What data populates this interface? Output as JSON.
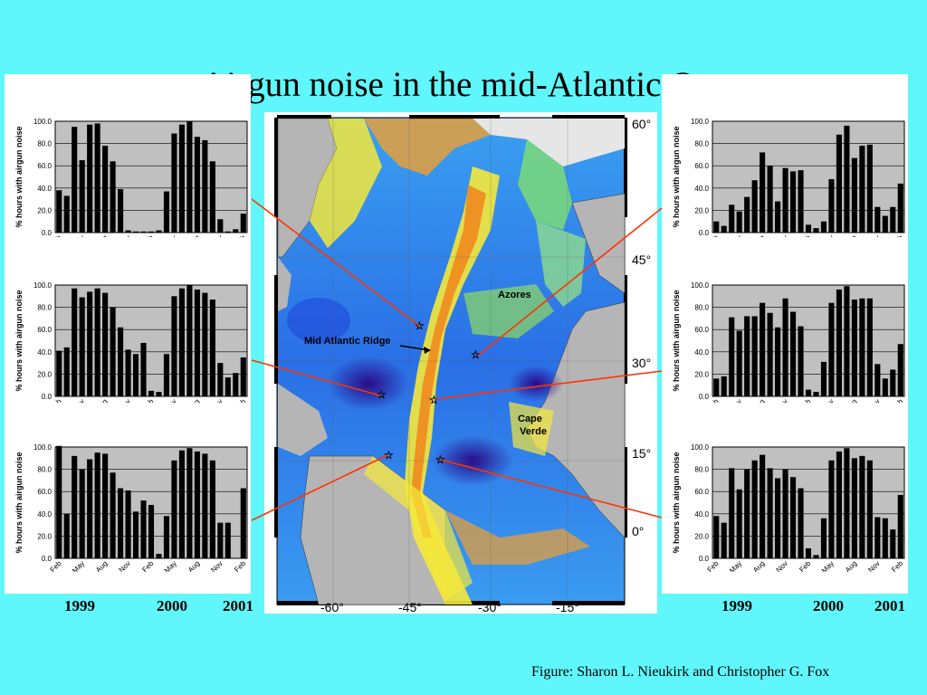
{
  "title": "Airgun noise in the mid-Atlantic Ocean",
  "credit": "Figure: Sharon L. Nieukirk and Christopher G. Fox",
  "year_labels": [
    "1999",
    "2000",
    "2001"
  ],
  "colors": {
    "background": "#5ff7fb",
    "plot_bg": "#c0c0c0",
    "bar": "#000000",
    "connector": "#ff3300",
    "deep": "#1f3fd0",
    "shallow": "#f5e83a",
    "land": "#b5b5b5"
  },
  "map": {
    "lat_labels": [
      "60°",
      "45°",
      "30°",
      "15°",
      "0°"
    ],
    "lon_labels": [
      "-60°",
      "-45°",
      "-30°",
      "-15°"
    ],
    "annotations": {
      "azores": "Azores",
      "ridge": "Mid Atlantic Ridge",
      "cape_verde_1": "Cape",
      "cape_verde_2": "Verde"
    }
  },
  "chart_data": [
    {
      "type": "bar",
      "id": "left-top",
      "ylabel": "% hours with airgun noise",
      "ylim": [
        0,
        100
      ],
      "yticks": [
        "100.0",
        "80.0",
        "60.0",
        "40.0",
        "20.0",
        "0.0"
      ],
      "xticks": [
        "Feb",
        "May",
        "Aug",
        "Nov",
        "Feb",
        "May",
        "Aug",
        "Nov",
        "Feb"
      ],
      "values": [
        38,
        33,
        95,
        65,
        97,
        98,
        78,
        64,
        39,
        2,
        1,
        1,
        1,
        2,
        37,
        89,
        97,
        100,
        86,
        83,
        64,
        12,
        1,
        3,
        17
      ]
    },
    {
      "type": "bar",
      "id": "left-middle",
      "ylabel": "% hours with airgun noise",
      "ylim": [
        0,
        100
      ],
      "yticks": [
        "100.0",
        "80.0",
        "60.0",
        "40.0",
        "20.0",
        "0.0"
      ],
      "xticks": [
        "Feb",
        "May",
        "Aug",
        "Nov",
        "Feb",
        "May",
        "Aug",
        "Nov",
        "Feb"
      ],
      "values": [
        41,
        44,
        97,
        89,
        94,
        97,
        93,
        80,
        62,
        42,
        38,
        48,
        5,
        4,
        38,
        90,
        97,
        100,
        96,
        93,
        87,
        30,
        17,
        21,
        35
      ]
    },
    {
      "type": "bar",
      "id": "left-bottom",
      "ylabel": "% hours with airgun noise",
      "ylim": [
        0,
        100
      ],
      "yticks": [
        "100.0",
        "80.0",
        "60.0",
        "40.0",
        "20.0",
        "0.0"
      ],
      "xticks": [
        "Feb",
        "May",
        "Aug",
        "Nov",
        "Feb",
        "May",
        "Aug",
        "Nov",
        "Feb"
      ],
      "values": [
        101,
        40,
        92,
        80,
        89,
        95,
        94,
        77,
        63,
        61,
        42,
        52,
        48,
        4,
        38,
        88,
        97,
        99,
        96,
        94,
        88,
        32,
        32,
        0,
        63
      ]
    },
    {
      "type": "bar",
      "id": "right-top",
      "ylabel": "% hours with airgun noise",
      "ylim": [
        0,
        100
      ],
      "yticks": [
        "100.0",
        "80.0",
        "60.0",
        "40.0",
        "20.0",
        "0.0"
      ],
      "xticks": [
        "Feb",
        "May",
        "Aug",
        "Nov",
        "Feb",
        "May",
        "Aug",
        "Nov",
        "Feb"
      ],
      "values": [
        10,
        6,
        25,
        19,
        32,
        47,
        72,
        60,
        28,
        58,
        55,
        56,
        7,
        4,
        10,
        48,
        88,
        96,
        67,
        78,
        79,
        23,
        15,
        23,
        44
      ]
    },
    {
      "type": "bar",
      "id": "right-middle",
      "ylabel": "% hours with airgun noise",
      "ylim": [
        0,
        100
      ],
      "yticks": [
        "100.0",
        "80.0",
        "60.0",
        "40.0",
        "20.0",
        "0.0"
      ],
      "xticks": [
        "Feb",
        "May",
        "Aug",
        "Nov",
        "Feb",
        "May",
        "Aug",
        "Nov",
        "Feb"
      ],
      "values": [
        16,
        18,
        71,
        59,
        72,
        72,
        84,
        75,
        62,
        88,
        76,
        63,
        6,
        4,
        31,
        84,
        96,
        99,
        87,
        88,
        88,
        29,
        16,
        24,
        47
      ]
    },
    {
      "type": "bar",
      "id": "right-bottom",
      "ylabel": "% hours with airgun noise",
      "ylim": [
        0,
        100
      ],
      "yticks": [
        "100.0",
        "80.0",
        "60.0",
        "40.0",
        "20.0",
        "0.0"
      ],
      "xticks": [
        "Feb",
        "May",
        "Aug",
        "Nov",
        "Feb",
        "May",
        "Aug",
        "Nov",
        "Feb"
      ],
      "values": [
        38,
        32,
        81,
        62,
        80,
        88,
        93,
        81,
        72,
        80,
        73,
        63,
        9,
        3,
        36,
        88,
        96,
        99,
        90,
        92,
        88,
        37,
        36,
        26,
        57
      ]
    }
  ]
}
